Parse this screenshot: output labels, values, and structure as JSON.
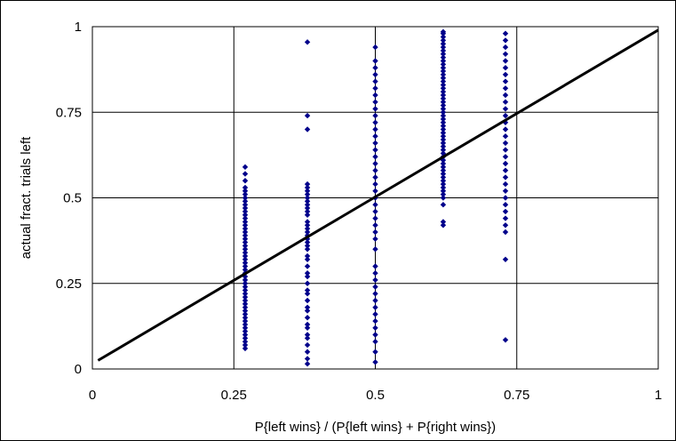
{
  "chart_data": {
    "type": "scatter",
    "title": "",
    "xlabel": "P{left wins} / (P{left wins} + P{right wins})",
    "ylabel": "actual fract. trials left",
    "xlim": [
      0,
      1
    ],
    "ylim": [
      0,
      1
    ],
    "x_ticks": [
      "0",
      "0.25",
      "0.5",
      "0.75",
      "1"
    ],
    "y_ticks": [
      "0",
      "0.25",
      "0.5",
      "0.75",
      "1"
    ],
    "grid": true,
    "legend": "none",
    "colors": {
      "points": "#00008B",
      "line": "#000000",
      "grid": "#000000"
    },
    "fit_line": {
      "x": [
        0.01,
        1.0
      ],
      "y": [
        0.025,
        0.99
      ]
    },
    "series": [
      {
        "x": 0.27,
        "y": [
          0.06,
          0.07,
          0.08,
          0.09,
          0.1,
          0.11,
          0.12,
          0.13,
          0.14,
          0.15,
          0.16,
          0.17,
          0.18,
          0.19,
          0.2,
          0.21,
          0.22,
          0.23,
          0.24,
          0.25,
          0.26,
          0.27,
          0.28,
          0.29,
          0.3,
          0.31,
          0.32,
          0.33,
          0.34,
          0.35,
          0.36,
          0.37,
          0.38,
          0.39,
          0.4,
          0.41,
          0.42,
          0.43,
          0.44,
          0.45,
          0.46,
          0.47,
          0.48,
          0.49,
          0.5,
          0.51,
          0.52,
          0.53,
          0.55,
          0.57,
          0.59
        ]
      },
      {
        "x": 0.38,
        "y": [
          0.015,
          0.03,
          0.05,
          0.07,
          0.09,
          0.1,
          0.12,
          0.13,
          0.15,
          0.17,
          0.18,
          0.2,
          0.22,
          0.23,
          0.25,
          0.27,
          0.28,
          0.3,
          0.32,
          0.33,
          0.35,
          0.36,
          0.37,
          0.38,
          0.39,
          0.4,
          0.41,
          0.42,
          0.43,
          0.45,
          0.46,
          0.47,
          0.48,
          0.49,
          0.5,
          0.51,
          0.52,
          0.53,
          0.54,
          0.7,
          0.74,
          0.955
        ]
      },
      {
        "x": 0.5,
        "y": [
          0.02,
          0.05,
          0.08,
          0.1,
          0.12,
          0.14,
          0.16,
          0.18,
          0.2,
          0.22,
          0.24,
          0.26,
          0.28,
          0.3,
          0.35,
          0.38,
          0.4,
          0.42,
          0.44,
          0.46,
          0.48,
          0.5,
          0.52,
          0.54,
          0.56,
          0.58,
          0.6,
          0.62,
          0.64,
          0.66,
          0.68,
          0.7,
          0.72,
          0.74,
          0.76,
          0.78,
          0.8,
          0.82,
          0.84,
          0.86,
          0.88,
          0.9,
          0.94
        ]
      },
      {
        "x": 0.62,
        "y": [
          0.42,
          0.43,
          0.48,
          0.5,
          0.51,
          0.52,
          0.53,
          0.54,
          0.55,
          0.56,
          0.57,
          0.58,
          0.59,
          0.6,
          0.61,
          0.62,
          0.63,
          0.64,
          0.65,
          0.66,
          0.67,
          0.68,
          0.69,
          0.7,
          0.71,
          0.72,
          0.73,
          0.74,
          0.75,
          0.76,
          0.77,
          0.78,
          0.79,
          0.8,
          0.81,
          0.82,
          0.83,
          0.84,
          0.85,
          0.86,
          0.87,
          0.88,
          0.89,
          0.9,
          0.91,
          0.92,
          0.93,
          0.94,
          0.95,
          0.96,
          0.97,
          0.98,
          0.985
        ]
      },
      {
        "x": 0.73,
        "y": [
          0.085,
          0.32,
          0.4,
          0.42,
          0.44,
          0.46,
          0.48,
          0.5,
          0.52,
          0.54,
          0.56,
          0.58,
          0.6,
          0.62,
          0.64,
          0.66,
          0.68,
          0.7,
          0.72,
          0.74,
          0.76,
          0.78,
          0.8,
          0.82,
          0.84,
          0.86,
          0.88,
          0.9,
          0.92,
          0.94,
          0.96,
          0.98
        ]
      }
    ]
  }
}
